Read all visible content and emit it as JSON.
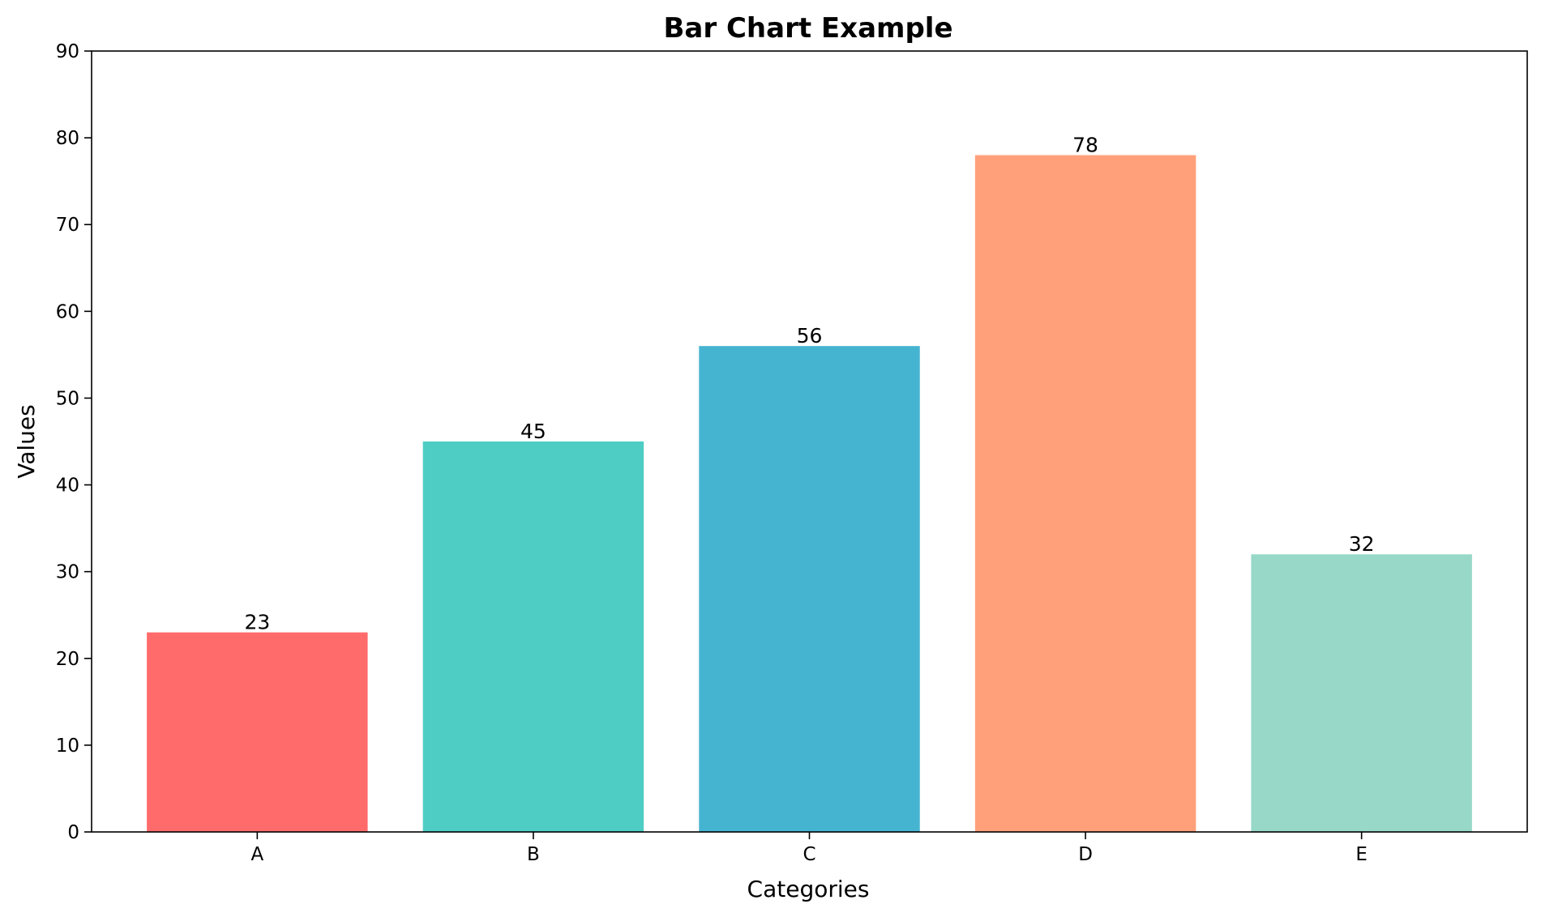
{
  "chart_data": {
    "type": "bar",
    "title": "Bar Chart Example",
    "xlabel": "Categories",
    "ylabel": "Values",
    "categories": [
      "A",
      "B",
      "C",
      "D",
      "E"
    ],
    "values": [
      23,
      45,
      56,
      78,
      32
    ],
    "colors": [
      "#FF6B6B",
      "#4ECDC4",
      "#45B4D1",
      "#FFA07A",
      "#98D8C8"
    ],
    "ylim": [
      0,
      90
    ],
    "yticks": [
      0,
      10,
      20,
      30,
      40,
      50,
      60,
      70,
      80,
      90
    ],
    "grid": false,
    "legend": "none",
    "data_labels": [
      "23",
      "45",
      "56",
      "78",
      "32"
    ]
  }
}
